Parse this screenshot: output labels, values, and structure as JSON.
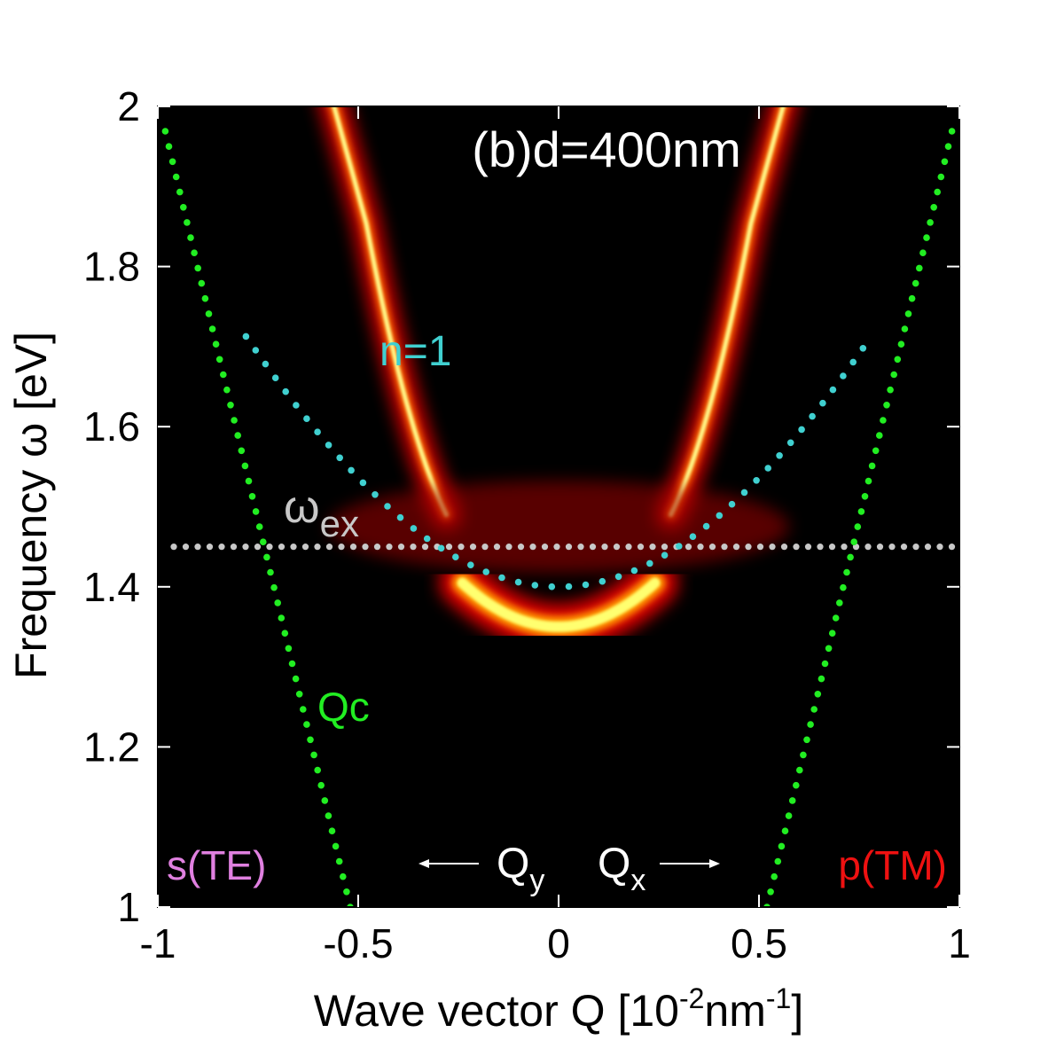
{
  "chart_data": {
    "type": "heatmap",
    "title": "(b)d=400nm",
    "xlabel": {
      "base": "Wave vector Q [10",
      "sup1": "-2",
      "mid": "nm",
      "sup2": "-1",
      "end": "]"
    },
    "ylabel": "Frequency ω [eV]",
    "xlim": [
      -1,
      1
    ],
    "ylim": [
      1,
      2
    ],
    "x_ticks": [
      {
        "value": -1,
        "label": "-1"
      },
      {
        "value": -0.5,
        "label": "-0.5"
      },
      {
        "value": 0,
        "label": "0"
      },
      {
        "value": 0.5,
        "label": "0.5"
      },
      {
        "value": 1,
        "label": "1"
      }
    ],
    "y_ticks": [
      {
        "value": 1,
        "label": "1"
      },
      {
        "value": 1.2,
        "label": "1.2"
      },
      {
        "value": 1.4,
        "label": "1.4"
      },
      {
        "value": 1.6,
        "label": "1.6"
      },
      {
        "value": 1.8,
        "label": "1.8"
      },
      {
        "value": 2,
        "label": "2"
      }
    ],
    "omega_ex": 1.45,
    "cavity_mode_n1": {
      "omega0": 1.4,
      "curvature": 0.98
    },
    "light_line_Qc": {
      "slope": 2.1,
      "q_intercept": 0.52
    },
    "polariton_lower": {
      "omega_min": 1.35
    },
    "polariton_upper": {
      "q_intercept": 0.28,
      "slope": 1.82
    },
    "colors": {
      "background": "#000000",
      "n1": "#40d0d0",
      "qc": "#22ee22",
      "omega_ex": "#c8c8c8",
      "s_te": "#e080e0",
      "p_tm": "#ee1111",
      "title": "#ffffff",
      "arrows": "#ffffff"
    },
    "annotations": {
      "n1_label": "n=1",
      "qc_label": "Qc",
      "omega_ex_symbol": "ω",
      "omega_ex_sub": "ex",
      "s_te": "s(TE)",
      "p_tm": "p(TM)",
      "qy_base": "Q",
      "qy_sub": "y",
      "qx_base": "Q",
      "qx_sub": "x"
    }
  }
}
